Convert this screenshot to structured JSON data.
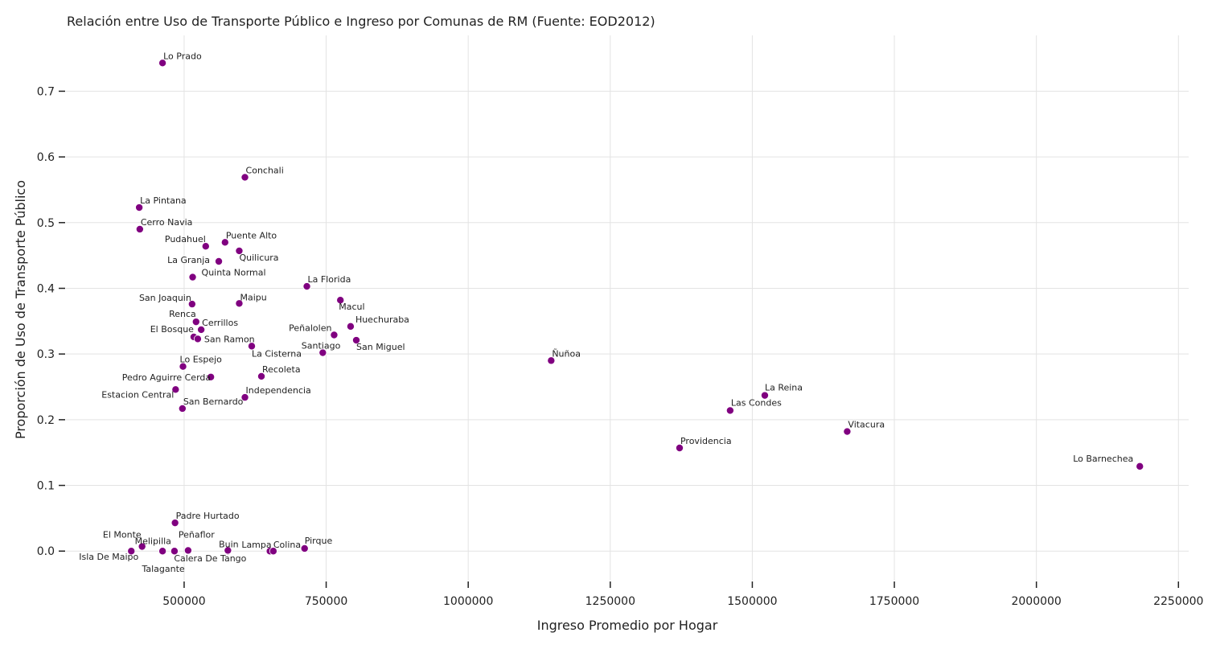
{
  "chart_data": {
    "type": "scatter",
    "title": "Relación entre Uso de Transporte Público e Ingreso por Comunas de RM (Fuente: EOD2012)",
    "xlabel": "Ingreso Promedio por Hogar",
    "ylabel": "Proporción de Uso de Transporte Público",
    "xlim": [
      292000,
      2268000
    ],
    "ylim": [
      -0.045,
      0.785
    ],
    "xticks": [
      500000,
      750000,
      1000000,
      1250000,
      1500000,
      1750000,
      2000000,
      2250000
    ],
    "xtick_labels": [
      "500000",
      "750000",
      "1000000",
      "1250000",
      "1500000",
      "1750000",
      "2000000",
      "2250000"
    ],
    "yticks": [
      0.0,
      0.1,
      0.2,
      0.3,
      0.4,
      0.5,
      0.6,
      0.7
    ],
    "ytick_labels": [
      "0.0",
      "0.1",
      "0.2",
      "0.3",
      "0.4",
      "0.5",
      "0.6",
      "0.7"
    ],
    "grid": true,
    "point_color": "#800080",
    "points": [
      {
        "label": "Lo Prado",
        "x": 462000,
        "y": 0.743,
        "anchor": "start",
        "dx": 1,
        "dy": -5
      },
      {
        "label": "Conchali",
        "x": 607000,
        "y": 0.569,
        "anchor": "start",
        "dx": 1,
        "dy": -5
      },
      {
        "label": "La Pintana",
        "x": 421000,
        "y": 0.523,
        "anchor": "start",
        "dx": 1,
        "dy": -5
      },
      {
        "label": "Cerro Navia",
        "x": 422000,
        "y": 0.49,
        "anchor": "start",
        "dx": 1,
        "dy": -5
      },
      {
        "label": "Puente Alto",
        "x": 572000,
        "y": 0.47,
        "anchor": "start",
        "dx": 1,
        "dy": -5
      },
      {
        "label": "Pudahuel",
        "x": 538000,
        "y": 0.464,
        "anchor": "end",
        "dx": 0,
        "dy": -5
      },
      {
        "label": "Quilicura",
        "x": 597000,
        "y": 0.457,
        "anchor": "start",
        "dx": 0,
        "dy": 12
      },
      {
        "label": "La Granja",
        "x": 561000,
        "y": 0.441,
        "anchor": "end",
        "dx": -11,
        "dy": 2
      },
      {
        "label": "Quinta Normal",
        "x": 515000,
        "y": 0.417,
        "anchor": "start",
        "dx": 11,
        "dy": -2
      },
      {
        "label": "La Florida",
        "x": 716000,
        "y": 0.403,
        "anchor": "start",
        "dx": 1,
        "dy": -5
      },
      {
        "label": "Macul",
        "x": 775000,
        "y": 0.382,
        "anchor": "start",
        "dx": -2,
        "dy": 12
      },
      {
        "label": "San Joaquin",
        "x": 514000,
        "y": 0.376,
        "anchor": "end",
        "dx": -1,
        "dy": -4
      },
      {
        "label": "Maipu",
        "x": 597000,
        "y": 0.377,
        "anchor": "start",
        "dx": 1,
        "dy": -4
      },
      {
        "label": "Renca",
        "x": 521000,
        "y": 0.349,
        "anchor": "end",
        "dx": 0,
        "dy": -6
      },
      {
        "label": "Huechuraba",
        "x": 793000,
        "y": 0.342,
        "anchor": "start",
        "dx": 6,
        "dy": -5
      },
      {
        "label": "Cerrillos",
        "x": 530000,
        "y": 0.337,
        "anchor": "start",
        "dx": 1,
        "dy": -5
      },
      {
        "label": "El Bosque",
        "x": 517000,
        "y": 0.326,
        "anchor": "end",
        "dx": 0,
        "dy": -6
      },
      {
        "label": "Peñalolen",
        "x": 764000,
        "y": 0.329,
        "anchor": "end",
        "dx": -3,
        "dy": -5
      },
      {
        "label": "San Ramon",
        "x": 524000,
        "y": 0.323,
        "anchor": "start",
        "dx": 8,
        "dy": 4
      },
      {
        "label": "San Miguel",
        "x": 803000,
        "y": 0.321,
        "anchor": "start",
        "dx": 0,
        "dy": 12
      },
      {
        "label": "La Cisterna",
        "x": 619000,
        "y": 0.312,
        "anchor": "start",
        "dx": 0,
        "dy": 13
      },
      {
        "label": "Santiago",
        "x": 744000,
        "y": 0.302,
        "anchor": "end",
        "dx": 22,
        "dy": -5
      },
      {
        "label": "Ñuñoa",
        "x": 1146000,
        "y": 0.29,
        "anchor": "start",
        "dx": 1,
        "dy": -5
      },
      {
        "label": "Lo Espejo",
        "x": 498000,
        "y": 0.281,
        "anchor": "start",
        "dx": -4,
        "dy": -5
      },
      {
        "label": "Pedro Aguirre Cerda",
        "x": 547000,
        "y": 0.265,
        "anchor": "end",
        "dx": 0,
        "dy": 4
      },
      {
        "label": "Recoleta",
        "x": 636000,
        "y": 0.266,
        "anchor": "start",
        "dx": 1,
        "dy": -5
      },
      {
        "label": "La Reina",
        "x": 1522000,
        "y": 0.237,
        "anchor": "start",
        "dx": 0,
        "dy": -6
      },
      {
        "label": "Estacion Central",
        "x": 485000,
        "y": 0.246,
        "anchor": "end",
        "dx": -2,
        "dy": 10
      },
      {
        "label": "Independencia",
        "x": 607000,
        "y": 0.234,
        "anchor": "start",
        "dx": 1,
        "dy": -5
      },
      {
        "label": "San Bernardo",
        "x": 497000,
        "y": 0.217,
        "anchor": "start",
        "dx": 1,
        "dy": -5
      },
      {
        "label": "Las Condes",
        "x": 1461000,
        "y": 0.214,
        "anchor": "start",
        "dx": 1,
        "dy": -6
      },
      {
        "label": "Vitacura",
        "x": 1667000,
        "y": 0.182,
        "anchor": "start",
        "dx": 1,
        "dy": -5
      },
      {
        "label": "Providencia",
        "x": 1372000,
        "y": 0.157,
        "anchor": "start",
        "dx": 1,
        "dy": -5
      },
      {
        "label": "Lo Barnechea",
        "x": 2182000,
        "y": 0.129,
        "anchor": "end",
        "dx": -8,
        "dy": -6
      },
      {
        "label": "Padre Hurtado",
        "x": 484000,
        "y": 0.043,
        "anchor": "start",
        "dx": 1,
        "dy": -5
      },
      {
        "label": "El Monte",
        "x": 426000,
        "y": 0.007,
        "anchor": "end",
        "dx": -1,
        "dy": -11
      },
      {
        "label": "Melipilla",
        "x": 426000,
        "y": 0.007,
        "anchor": "start",
        "dx": -9,
        "dy": -3
      },
      {
        "label": "Peñaflor",
        "x": 507000,
        "y": 0.001,
        "anchor": "start",
        "dx": -12,
        "dy": -16
      },
      {
        "label": "Isla De Maipo",
        "x": 407000,
        "y": 0.0,
        "anchor": "end",
        "dx": 9,
        "dy": 11
      },
      {
        "label": "Talagante",
        "x": 462000,
        "y": 0.0,
        "anchor": "middle",
        "dx": 1,
        "dy": 26
      },
      {
        "label": "",
        "x": 483000,
        "y": 0.0,
        "anchor": "start",
        "dx": 0,
        "dy": 0
      },
      {
        "label": "Calera De Tango",
        "x": 577000,
        "y": 0.0,
        "anchor": "middle",
        "dx": -22,
        "dy": 13
      },
      {
        "label": "Buin",
        "x": 577000,
        "y": 0.001,
        "anchor": "middle",
        "dx": 1,
        "dy": -4
      },
      {
        "label": "Lampa",
        "x": 651000,
        "y": 0.0,
        "anchor": "end",
        "dx": 2,
        "dy": -4
      },
      {
        "label": "Colina",
        "x": 657000,
        "y": 0.0,
        "anchor": "start",
        "dx": 0,
        "dy": -4
      },
      {
        "label": "Pirque",
        "x": 712000,
        "y": 0.004,
        "anchor": "start",
        "dx": 0,
        "dy": -6
      }
    ]
  }
}
